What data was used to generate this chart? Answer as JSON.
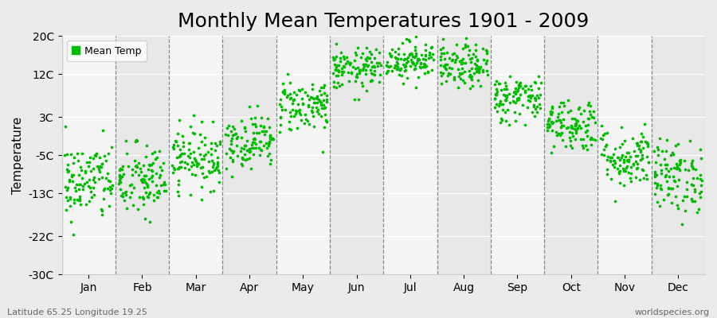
{
  "title": "Monthly Mean Temperatures 1901 - 2009",
  "ylabel": "Temperature",
  "yticks": [
    -30,
    -22,
    -13,
    -5,
    3,
    12,
    20
  ],
  "ytick_labels": [
    "-30C",
    "-22C",
    "-13C",
    "-5C",
    "3C",
    "12C",
    "20C"
  ],
  "months": [
    "Jan",
    "Feb",
    "Mar",
    "Apr",
    "May",
    "Jun",
    "Jul",
    "Aug",
    "Sep",
    "Oct",
    "Nov",
    "Dec"
  ],
  "dot_color": "#00BB00",
  "bg_color": "#EBEBEB",
  "plot_bg_light": "#F4F4F4",
  "plot_bg_dark": "#E8E8E8",
  "n_years": 109,
  "month_means": [
    -10.5,
    -10.5,
    -5.5,
    -2.0,
    5.5,
    13.0,
    15.0,
    13.5,
    7.0,
    1.5,
    -5.5,
    -9.5
  ],
  "month_stds": [
    4.2,
    4.0,
    3.2,
    2.8,
    2.8,
    2.2,
    2.0,
    2.3,
    2.5,
    2.8,
    3.2,
    3.8
  ],
  "bottom_left": "Latitude 65.25 Longitude 19.25",
  "bottom_right": "worldspecies.org",
  "title_fontsize": 18,
  "axis_label_fontsize": 11,
  "tick_fontsize": 10,
  "legend_label": "Mean Temp"
}
